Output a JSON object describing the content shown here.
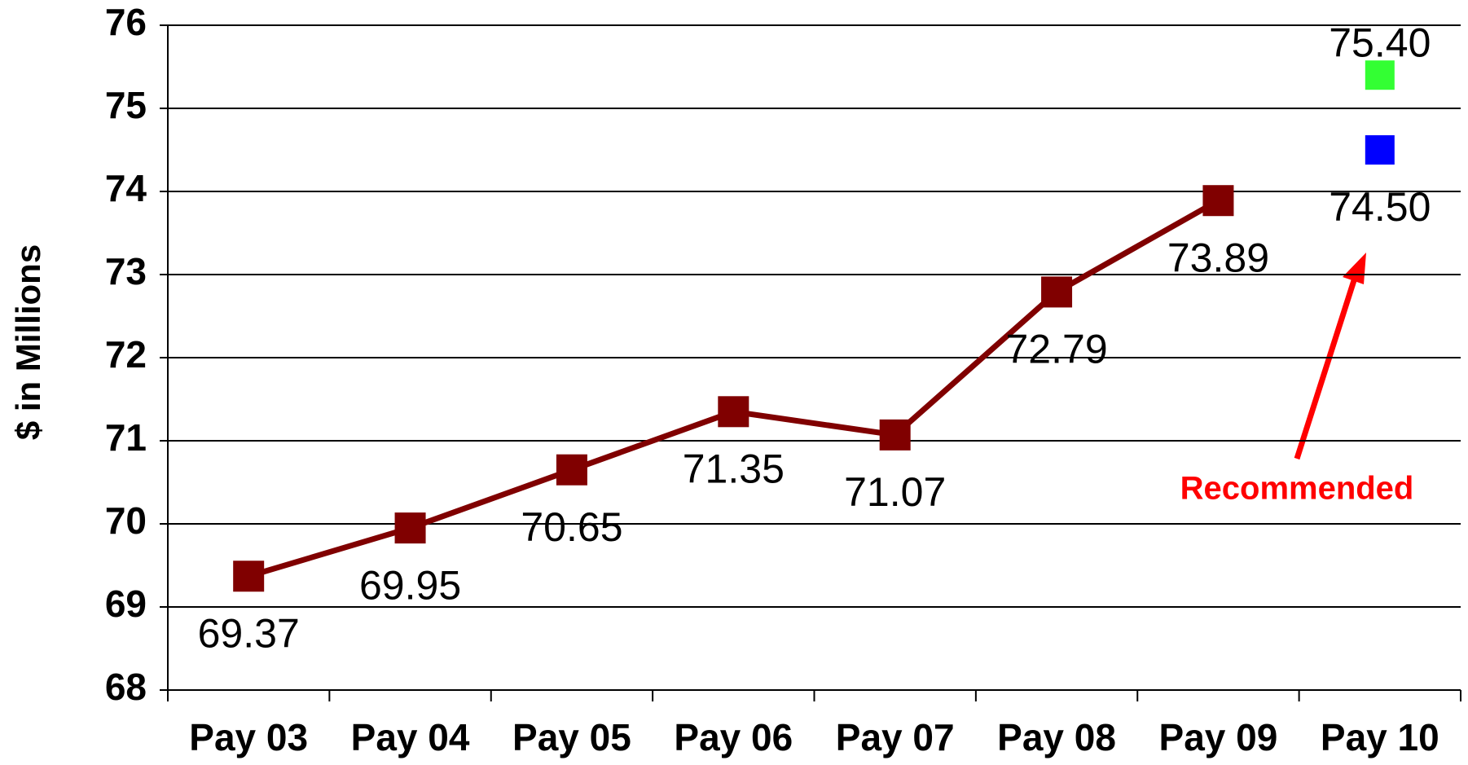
{
  "chart_data": {
    "type": "line",
    "y_label": "$ in Millions",
    "categories": [
      "Pay 03",
      "Pay 04",
      "Pay 05",
      "Pay 06",
      "Pay 07",
      "Pay 08",
      "Pay 09",
      "Pay 10"
    ],
    "series": [
      {
        "color": "#800000",
        "values": [
          69.37,
          69.95,
          70.65,
          71.35,
          71.07,
          72.79,
          73.89,
          null
        ],
        "value_labels": [
          "69.37",
          "69.95",
          "70.65",
          "71.35",
          "71.07",
          "72.79",
          "73.89",
          null
        ]
      },
      {
        "color": "#33ff33",
        "values": [
          null,
          null,
          null,
          null,
          null,
          null,
          null,
          75.4
        ],
        "value_labels": [
          null,
          null,
          null,
          null,
          null,
          null,
          null,
          "75.40"
        ]
      },
      {
        "color": "#0000ff",
        "values": [
          null,
          null,
          null,
          null,
          null,
          null,
          null,
          74.5
        ],
        "value_labels": [
          null,
          null,
          null,
          null,
          null,
          null,
          null,
          "74.50"
        ]
      }
    ],
    "annotation": "Recommended",
    "ylim": [
      68,
      76
    ],
    "yticks": [
      68,
      69,
      70,
      71,
      72,
      73,
      74,
      75,
      76
    ],
    "grid": true
  }
}
